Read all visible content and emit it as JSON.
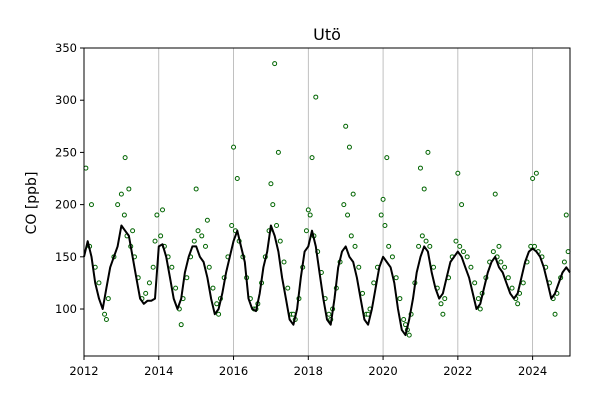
{
  "chart_data": {
    "type": "scatter",
    "title": "Utö",
    "xlabel": "",
    "ylabel": "CO [ppb]",
    "xlim": [
      2012.0,
      2025.0
    ],
    "ylim": [
      55,
      350
    ],
    "xticks": [
      2012,
      2014,
      2016,
      2018,
      2020,
      2022,
      2024
    ],
    "xtick_labels": [
      "2012",
      "2014",
      "2016",
      "2018",
      "2020",
      "2022",
      "2024"
    ],
    "yticks": [
      100,
      150,
      200,
      250,
      300,
      350
    ],
    "ytick_labels": [
      "100",
      "150",
      "200",
      "250",
      "300",
      "350"
    ],
    "grid": "vertical lines at yearly ticks",
    "colors": {
      "points_edge": "#006400",
      "points_fill": "#ffffff",
      "trend": "#000000",
      "grid": "#b0b0b0"
    },
    "series": [
      {
        "kind": "points",
        "x": [
          2012.05,
          2012.15,
          2012.3,
          2012.4,
          2012.55,
          2012.65,
          2012.8,
          2012.9,
          2013.0,
          2013.08,
          2013.15,
          2013.25,
          2013.35,
          2013.45,
          2013.55,
          2013.65,
          2013.75,
          2013.85,
          2013.95,
          2014.05,
          2014.15,
          2014.25,
          2014.35,
          2014.45,
          2014.55,
          2014.65,
          2014.75,
          2014.85,
          2014.95,
          2015.05,
          2015.15,
          2015.25,
          2015.35,
          2015.45,
          2015.55,
          2015.65,
          2015.75,
          2015.85,
          2015.95,
          2016.05,
          2016.15,
          2016.25,
          2016.35,
          2016.45,
          2016.55,
          2016.65,
          2016.75,
          2016.85,
          2016.95,
          2017.05,
          2017.15,
          2017.25,
          2017.35,
          2017.45,
          2017.55,
          2017.65,
          2017.75,
          2017.85,
          2017.95,
          2018.05,
          2018.15,
          2018.25,
          2018.35,
          2018.45,
          2018.55,
          2018.65,
          2018.75,
          2018.85,
          2018.95,
          2019.05,
          2019.15,
          2019.25,
          2019.35,
          2019.45,
          2019.55,
          2019.65,
          2019.75,
          2019.85,
          2019.95,
          2020.05,
          2020.15,
          2020.25,
          2020.35,
          2020.45,
          2020.55,
          2020.65,
          2020.75,
          2020.85,
          2020.95,
          2021.05,
          2021.15,
          2021.25,
          2021.35,
          2021.45,
          2021.55,
          2021.65,
          2021.75,
          2021.85,
          2021.95,
          2022.05,
          2022.15,
          2022.25,
          2022.35,
          2022.45,
          2022.55,
          2022.65,
          2022.75,
          2022.85,
          2022.95,
          2023.05,
          2023.15,
          2023.25,
          2023.35,
          2023.45,
          2023.55,
          2023.65,
          2023.75,
          2023.85,
          2023.95,
          2024.05,
          2024.15,
          2024.25,
          2024.35,
          2024.45,
          2024.55,
          2024.65,
          2024.75,
          2024.85,
          2024.95,
          2012.2,
          2012.6,
          2013.1,
          2013.2,
          2013.3,
          2013.9,
          2014.1,
          2014.6,
          2015.0,
          2015.3,
          2015.6,
          2016.0,
          2016.1,
          2016.6,
          2017.0,
          2017.1,
          2017.2,
          2017.6,
          2018.0,
          2018.1,
          2018.2,
          2018.6,
          2019.0,
          2019.1,
          2019.2,
          2019.6,
          2020.0,
          2020.1,
          2020.6,
          2020.7,
          2021.0,
          2021.1,
          2021.2,
          2021.6,
          2022.0,
          2022.1,
          2022.6,
          2023.0,
          2023.1,
          2023.6,
          2024.0,
          2024.1,
          2024.6,
          2024.9
        ],
        "y": [
          235,
          160,
          140,
          125,
          95,
          110,
          150,
          200,
          210,
          190,
          170,
          160,
          150,
          130,
          110,
          115,
          125,
          140,
          190,
          170,
          160,
          150,
          140,
          120,
          100,
          110,
          130,
          150,
          165,
          175,
          170,
          160,
          140,
          120,
          105,
          110,
          130,
          150,
          180,
          175,
          165,
          150,
          130,
          110,
          100,
          105,
          125,
          150,
          175,
          200,
          180,
          165,
          145,
          120,
          95,
          90,
          110,
          140,
          175,
          190,
          170,
          155,
          135,
          110,
          95,
          100,
          120,
          145,
          200,
          190,
          170,
          160,
          140,
          115,
          95,
          100,
          125,
          140,
          190,
          180,
          160,
          150,
          130,
          110,
          90,
          80,
          95,
          125,
          160,
          170,
          165,
          160,
          140,
          120,
          105,
          110,
          130,
          150,
          165,
          160,
          155,
          150,
          140,
          125,
          110,
          115,
          130,
          145,
          155,
          150,
          145,
          140,
          130,
          120,
          110,
          115,
          125,
          145,
          160,
          160,
          155,
          150,
          140,
          125,
          110,
          115,
          130,
          145,
          155,
          200,
          90,
          245,
          215,
          175,
          165,
          195,
          85,
          215,
          185,
          95,
          255,
          225,
          100,
          220,
          335,
          250,
          95,
          195,
          245,
          303,
          90,
          275,
          255,
          210,
          95,
          205,
          245,
          85,
          75,
          235,
          215,
          250,
          95,
          230,
          200,
          100,
          210,
          160,
          105,
          225,
          230,
          95,
          190
        ],
        "marker": "circle"
      },
      {
        "kind": "line",
        "name": "",
        "x": [
          2012.0,
          2012.1,
          2012.2,
          2012.3,
          2012.4,
          2012.5,
          2012.6,
          2012.7,
          2012.8,
          2012.9,
          2013.0,
          2013.1,
          2013.2,
          2013.3,
          2013.4,
          2013.5,
          2013.6,
          2013.7,
          2013.8,
          2013.9,
          2014.0,
          2014.1,
          2014.2,
          2014.3,
          2014.4,
          2014.5,
          2014.6,
          2014.7,
          2014.8,
          2014.9,
          2015.0,
          2015.1,
          2015.2,
          2015.3,
          2015.4,
          2015.5,
          2015.6,
          2015.7,
          2015.8,
          2015.9,
          2016.0,
          2016.1,
          2016.2,
          2016.3,
          2016.4,
          2016.5,
          2016.6,
          2016.7,
          2016.8,
          2016.9,
          2017.0,
          2017.1,
          2017.2,
          2017.3,
          2017.4,
          2017.5,
          2017.6,
          2017.7,
          2017.8,
          2017.9,
          2018.0,
          2018.1,
          2018.2,
          2018.3,
          2018.4,
          2018.5,
          2018.6,
          2018.7,
          2018.8,
          2018.9,
          2019.0,
          2019.1,
          2019.2,
          2019.3,
          2019.4,
          2019.5,
          2019.6,
          2019.7,
          2019.8,
          2019.9,
          2020.0,
          2020.1,
          2020.2,
          2020.3,
          2020.4,
          2020.5,
          2020.6,
          2020.7,
          2020.8,
          2020.9,
          2021.0,
          2021.1,
          2021.2,
          2021.3,
          2021.4,
          2021.5,
          2021.6,
          2021.7,
          2021.8,
          2021.9,
          2022.0,
          2022.1,
          2022.2,
          2022.3,
          2022.4,
          2022.5,
          2022.6,
          2022.7,
          2022.8,
          2022.9,
          2023.0,
          2023.1,
          2023.2,
          2023.3,
          2023.4,
          2023.5,
          2023.6,
          2023.7,
          2023.8,
          2023.9,
          2024.0,
          2024.1,
          2024.2,
          2024.3,
          2024.4,
          2024.5,
          2024.6,
          2024.7,
          2024.8,
          2024.9,
          2025.0
        ],
        "y": [
          150,
          165,
          150,
          125,
          110,
          100,
          120,
          140,
          150,
          160,
          180,
          175,
          170,
          150,
          130,
          110,
          105,
          108,
          108,
          110,
          160,
          162,
          150,
          130,
          110,
          100,
          110,
          135,
          150,
          160,
          160,
          150,
          145,
          130,
          110,
          95,
          100,
          115,
          135,
          150,
          165,
          175,
          160,
          145,
          110,
          100,
          98,
          115,
          140,
          155,
          180,
          170,
          155,
          130,
          110,
          90,
          85,
          100,
          130,
          155,
          160,
          175,
          160,
          135,
          110,
          90,
          85,
          110,
          140,
          155,
          160,
          150,
          145,
          130,
          110,
          90,
          85,
          100,
          120,
          140,
          150,
          145,
          140,
          125,
          100,
          80,
          75,
          90,
          110,
          135,
          150,
          160,
          155,
          135,
          120,
          110,
          115,
          130,
          145,
          150,
          155,
          150,
          140,
          130,
          115,
          100,
          105,
          120,
          135,
          145,
          150,
          140,
          135,
          125,
          115,
          110,
          115,
          130,
          145,
          155,
          158,
          155,
          150,
          140,
          125,
          110,
          115,
          125,
          135,
          140,
          135
        ]
      }
    ]
  }
}
